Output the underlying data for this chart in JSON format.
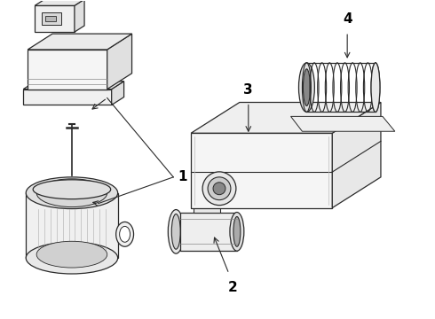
{
  "background_color": "#ffffff",
  "line_color": "#2a2a2a",
  "label_color": "#000000",
  "fig_width": 4.9,
  "fig_height": 3.6,
  "dpi": 100,
  "label_fontsize": 10
}
